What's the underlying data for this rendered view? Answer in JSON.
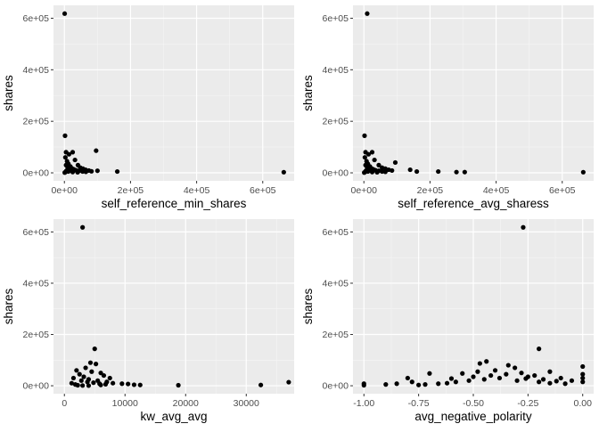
{
  "chart_data": [
    {
      "type": "scatter",
      "title": "",
      "xlabel": "self_reference_min_shares",
      "ylabel": "shares",
      "xlim": [
        -33000,
        695000
      ],
      "ylim": [
        -31000,
        650000
      ],
      "x_ticks": [
        0,
        200000,
        400000,
        600000
      ],
      "x_tick_labels": [
        "0e+00",
        "2e+05",
        "4e+05",
        "6e+05"
      ],
      "y_ticks": [
        0,
        200000,
        400000,
        600000
      ],
      "y_tick_labels": [
        "0e+00",
        "2e+05",
        "4e+05",
        "6e+05"
      ],
      "grid": true,
      "point_color": "#000000",
      "points": [
        [
          843,
          617900
        ],
        [
          2000,
          144000
        ],
        [
          5000,
          80000
        ],
        [
          14000,
          72000
        ],
        [
          25000,
          80000
        ],
        [
          32000,
          50000
        ],
        [
          41000,
          30000
        ],
        [
          48000,
          20000
        ],
        [
          56000,
          16000
        ],
        [
          64000,
          12000
        ],
        [
          74000,
          9000
        ],
        [
          82000,
          6000
        ],
        [
          96000,
          86000
        ],
        [
          100000,
          8000
        ],
        [
          160000,
          5000
        ],
        [
          663600,
          2500
        ],
        [
          3000,
          60000
        ],
        [
          8000,
          45000
        ],
        [
          12000,
          35000
        ],
        [
          18000,
          25000
        ],
        [
          22000,
          18000
        ],
        [
          28000,
          14000
        ],
        [
          35000,
          10000
        ],
        [
          45000,
          8000
        ],
        [
          55000,
          5000
        ],
        [
          65000,
          4000
        ],
        [
          5000,
          30000
        ],
        [
          10000,
          20000
        ],
        [
          15000,
          15000
        ],
        [
          20000,
          10000
        ],
        [
          6000,
          8000
        ],
        [
          12000,
          5000
        ],
        [
          25000,
          3000
        ],
        [
          40000,
          2000
        ],
        [
          3000,
          3000
        ],
        [
          1000,
          1000
        ]
      ]
    },
    {
      "type": "scatter",
      "title": "",
      "xlabel": "self_reference_avg_sharess",
      "ylabel": "shares",
      "xlim": [
        -33000,
        695000
      ],
      "ylim": [
        -31000,
        650000
      ],
      "x_ticks": [
        0,
        200000,
        400000,
        600000
      ],
      "x_tick_labels": [
        "0e+00",
        "2e+05",
        "4e+05",
        "6e+05"
      ],
      "y_ticks": [
        0,
        200000,
        400000,
        600000
      ],
      "y_tick_labels": [
        "0e+00",
        "2e+05",
        "4e+05",
        "6e+05"
      ],
      "grid": true,
      "point_color": "#000000",
      "points": [
        [
          10000,
          617900
        ],
        [
          2000,
          144000
        ],
        [
          5000,
          80000
        ],
        [
          14000,
          72000
        ],
        [
          25000,
          80000
        ],
        [
          32000,
          50000
        ],
        [
          45000,
          30000
        ],
        [
          55000,
          20000
        ],
        [
          65000,
          16000
        ],
        [
          75000,
          12000
        ],
        [
          85000,
          9000
        ],
        [
          95000,
          40000
        ],
        [
          140000,
          12000
        ],
        [
          160000,
          5000
        ],
        [
          225000,
          5000
        ],
        [
          280000,
          3000
        ],
        [
          305000,
          3000
        ],
        [
          663600,
          2500
        ],
        [
          3000,
          60000
        ],
        [
          8000,
          45000
        ],
        [
          12000,
          35000
        ],
        [
          18000,
          25000
        ],
        [
          22000,
          18000
        ],
        [
          28000,
          14000
        ],
        [
          35000,
          10000
        ],
        [
          45000,
          8000
        ],
        [
          55000,
          5000
        ],
        [
          65000,
          4000
        ],
        [
          5000,
          30000
        ],
        [
          10000,
          20000
        ],
        [
          15000,
          15000
        ],
        [
          20000,
          10000
        ],
        [
          6000,
          8000
        ],
        [
          12000,
          5000
        ],
        [
          25000,
          3000
        ],
        [
          40000,
          2000
        ],
        [
          3000,
          3000
        ],
        [
          1000,
          1000
        ]
      ]
    },
    {
      "type": "scatter",
      "title": "",
      "xlabel": "kw_avg_avg",
      "ylabel": "shares",
      "xlim": [
        -1800,
        37900
      ],
      "ylim": [
        -31000,
        650000
      ],
      "x_ticks": [
        0,
        10000,
        20000,
        30000
      ],
      "x_tick_labels": [
        "0",
        "10000",
        "20000",
        "30000"
      ],
      "y_ticks": [
        0,
        200000,
        400000,
        600000
      ],
      "y_tick_labels": [
        "0e+00",
        "2e+05",
        "4e+05",
        "6e+05"
      ],
      "grid": true,
      "point_color": "#000000",
      "points": [
        [
          3000,
          617900
        ],
        [
          5000,
          144000
        ],
        [
          4300,
          90000
        ],
        [
          5200,
          85000
        ],
        [
          2000,
          60000
        ],
        [
          3500,
          70000
        ],
        [
          4500,
          55000
        ],
        [
          6000,
          50000
        ],
        [
          6500,
          40000
        ],
        [
          7500,
          30000
        ],
        [
          1500,
          30000
        ],
        [
          2500,
          45000
        ],
        [
          3200,
          35000
        ],
        [
          4000,
          25000
        ],
        [
          5500,
          20000
        ],
        [
          7000,
          15000
        ],
        [
          8000,
          10000
        ],
        [
          9500,
          8000
        ],
        [
          10500,
          7000
        ],
        [
          11500,
          4000
        ],
        [
          12500,
          3000
        ],
        [
          18800,
          2000
        ],
        [
          32400,
          3000
        ],
        [
          37000,
          14000
        ],
        [
          1200,
          10000
        ],
        [
          1800,
          5000
        ],
        [
          2200,
          2000
        ],
        [
          3000,
          1000
        ],
        [
          4000,
          500
        ],
        [
          6000,
          3000
        ],
        [
          2800,
          20000
        ],
        [
          3800,
          15000
        ],
        [
          4800,
          12000
        ],
        [
          5800,
          8000
        ],
        [
          6800,
          6000
        ]
      ]
    },
    {
      "type": "scatter",
      "title": "",
      "xlabel": "avg_negative_polarity",
      "ylabel": "shares",
      "xlim": [
        -1.05,
        0.05
      ],
      "ylim": [
        -31000,
        650000
      ],
      "x_ticks": [
        -1.0,
        -0.75,
        -0.5,
        -0.25,
        0.0
      ],
      "x_tick_labels": [
        "-1.00",
        "-0.75",
        "-0.50",
        "-0.25",
        "0.00"
      ],
      "y_ticks": [
        0,
        200000,
        400000,
        600000
      ],
      "y_tick_labels": [
        "0e+00",
        "2e+05",
        "4e+05",
        "6e+05"
      ],
      "grid": true,
      "point_color": "#000000",
      "points": [
        [
          -0.272,
          617900
        ],
        [
          -0.2,
          144000
        ],
        [
          -0.44,
          95000
        ],
        [
          -0.47,
          87000
        ],
        [
          -0.34,
          80000
        ],
        [
          -0.31,
          70000
        ],
        [
          -0.15,
          55000
        ],
        [
          -0.55,
          48000
        ],
        [
          -0.7,
          48000
        ],
        [
          -0.8,
          30000
        ],
        [
          -0.9,
          5000
        ],
        [
          -1.0,
          8000
        ],
        [
          -1.0,
          2000
        ],
        [
          -0.0,
          75000
        ],
        [
          -0.0,
          45000
        ],
        [
          -0.0,
          30000
        ],
        [
          -0.0,
          15000
        ],
        [
          -0.05,
          20000
        ],
        [
          -0.1,
          30000
        ],
        [
          -0.12,
          18000
        ],
        [
          -0.18,
          25000
        ],
        [
          -0.22,
          40000
        ],
        [
          -0.25,
          35000
        ],
        [
          -0.28,
          50000
        ],
        [
          -0.35,
          45000
        ],
        [
          -0.38,
          30000
        ],
        [
          -0.42,
          40000
        ],
        [
          -0.45,
          25000
        ],
        [
          -0.5,
          35000
        ],
        [
          -0.52,
          20000
        ],
        [
          -0.58,
          15000
        ],
        [
          -0.62,
          10000
        ],
        [
          -0.66,
          8000
        ],
        [
          -0.72,
          5000
        ],
        [
          -0.75,
          3000
        ],
        [
          -0.78,
          15000
        ],
        [
          -0.85,
          8000
        ],
        [
          -0.4,
          60000
        ],
        [
          -0.3,
          20000
        ],
        [
          -0.2,
          15000
        ],
        [
          -0.15,
          10000
        ],
        [
          -0.08,
          8000
        ],
        [
          -0.6,
          28000
        ],
        [
          -0.48,
          55000
        ],
        [
          -0.26,
          28000
        ]
      ]
    }
  ]
}
